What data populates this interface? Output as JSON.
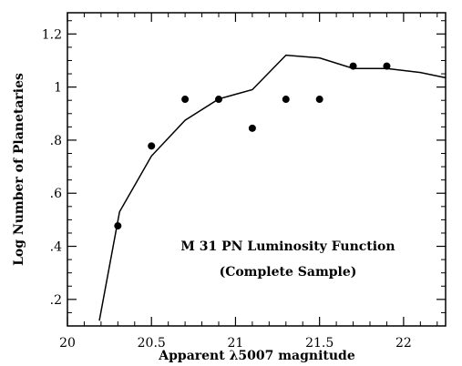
{
  "chart_data": {
    "type": "scatter",
    "title": "",
    "xlabel": "Apparent λ5007 magnitude",
    "ylabel": "Log Number of Planetaries",
    "xlim": [
      20.0,
      22.25
    ],
    "ylim": [
      0.1,
      1.28
    ],
    "x_ticks": [
      20,
      20.5,
      21,
      21.5,
      22
    ],
    "x_tick_labels": [
      "20",
      "20.5",
      "21",
      "21.5",
      "22"
    ],
    "y_ticks": [
      0.2,
      0.4,
      0.6,
      0.8,
      1.0,
      1.2
    ],
    "y_tick_labels": [
      ".2",
      ".4",
      ".6",
      ".8",
      "1",
      "1.2"
    ],
    "grid": false,
    "series": [
      {
        "kind": "points",
        "x": [
          20.3,
          20.5,
          20.7,
          20.9,
          21.1,
          21.3,
          21.5,
          21.7,
          21.9
        ],
        "y": [
          0.477,
          0.778,
          0.954,
          0.954,
          0.845,
          0.954,
          0.954,
          1.079,
          1.079
        ]
      },
      {
        "kind": "line",
        "x": [
          20.19,
          20.31,
          20.5,
          20.7,
          20.9,
          21.1,
          21.3,
          21.5,
          21.7,
          21.9,
          22.1,
          22.25
        ],
        "y": [
          0.12,
          0.53,
          0.74,
          0.875,
          0.955,
          0.99,
          1.12,
          1.11,
          1.07,
          1.07,
          1.055,
          1.035
        ]
      }
    ],
    "annotations": [
      "M 31 PN Luminosity Function",
      "(Complete Sample)"
    ]
  }
}
